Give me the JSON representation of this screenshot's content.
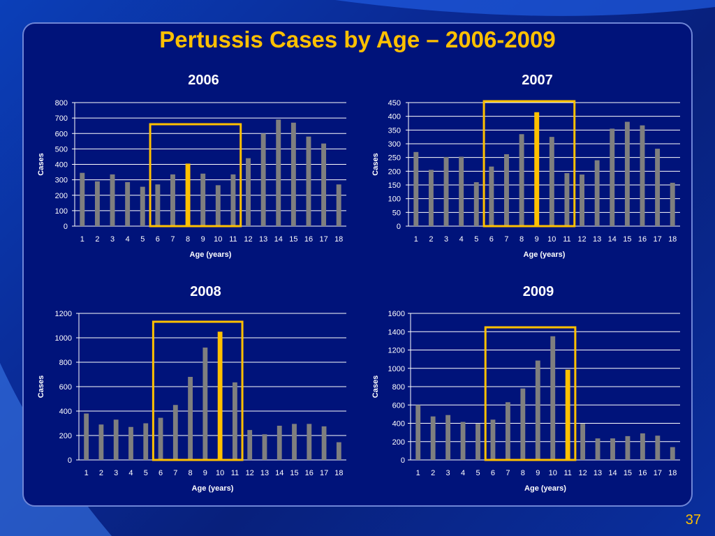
{
  "slide": {
    "title": "Pertussis Cases by Age – 2006-2009",
    "page_number": "37"
  },
  "colors": {
    "panel_bg": "#00137a",
    "title": "#ffc000",
    "bar_default": "#7f7f7f",
    "bar_highlight": "#ffc000",
    "highlight_box": "#ffc000",
    "grid": "#ffffff",
    "text": "#ffffff"
  },
  "chart_data": [
    {
      "type": "bar",
      "title": "2006",
      "xlabel": "Age (years)",
      "ylabel": "Cases",
      "categories": [
        "1",
        "2",
        "3",
        "4",
        "5",
        "6",
        "7",
        "8",
        "9",
        "10",
        "11",
        "12",
        "13",
        "14",
        "15",
        "16",
        "17",
        "18"
      ],
      "values": [
        345,
        290,
        335,
        285,
        255,
        270,
        335,
        405,
        340,
        265,
        335,
        440,
        600,
        690,
        670,
        580,
        535,
        270
      ],
      "ylim": [
        0,
        800
      ],
      "yticks": [
        0,
        100,
        200,
        300,
        400,
        500,
        600,
        700,
        800
      ],
      "highlight_index": 7,
      "highlight_range": [
        "6",
        "11"
      ],
      "grid": true
    },
    {
      "type": "bar",
      "title": "2007",
      "xlabel": "Age (years)",
      "ylabel": "Cases",
      "categories": [
        "1",
        "2",
        "3",
        "4",
        "5",
        "6",
        "7",
        "8",
        "9",
        "10",
        "11",
        "12",
        "13",
        "14",
        "15",
        "16",
        "17",
        "18"
      ],
      "values": [
        270,
        205,
        252,
        253,
        160,
        217,
        262,
        335,
        415,
        325,
        193,
        188,
        240,
        355,
        380,
        367,
        282,
        158
      ],
      "ylim": [
        0,
        450
      ],
      "yticks": [
        0,
        50,
        100,
        150,
        200,
        250,
        300,
        350,
        400,
        450
      ],
      "highlight_index": 8,
      "highlight_range": [
        "6",
        "11"
      ],
      "grid": true
    },
    {
      "type": "bar",
      "title": "2008",
      "xlabel": "Age (years)",
      "ylabel": "Cases",
      "categories": [
        "1",
        "2",
        "3",
        "4",
        "5",
        "6",
        "7",
        "8",
        "9",
        "10",
        "11",
        "12",
        "13",
        "14",
        "15",
        "16",
        "17",
        "18"
      ],
      "values": [
        380,
        290,
        330,
        270,
        300,
        345,
        450,
        680,
        920,
        1050,
        635,
        245,
        210,
        280,
        295,
        295,
        275,
        145
      ],
      "ylim": [
        0,
        1200
      ],
      "yticks": [
        0,
        200,
        400,
        600,
        800,
        1000,
        1200
      ],
      "highlight_index": 9,
      "highlight_range": [
        "6",
        "11"
      ],
      "grid": true
    },
    {
      "type": "bar",
      "title": "2009",
      "xlabel": "Age (years)",
      "ylabel": "Cases",
      "categories": [
        "1",
        "2",
        "3",
        "4",
        "5",
        "6",
        "7",
        "8",
        "9",
        "10",
        "11",
        "12",
        "13",
        "14",
        "15",
        "16",
        "17",
        "18"
      ],
      "values": [
        600,
        475,
        490,
        415,
        395,
        440,
        630,
        780,
        1085,
        1350,
        985,
        395,
        235,
        235,
        260,
        290,
        265,
        140
      ],
      "ylim": [
        0,
        1600
      ],
      "yticks": [
        0,
        200,
        400,
        600,
        800,
        1000,
        1200,
        1400,
        1600
      ],
      "highlight_index": 10,
      "highlight_range": [
        "6",
        "11"
      ],
      "grid": true
    }
  ]
}
